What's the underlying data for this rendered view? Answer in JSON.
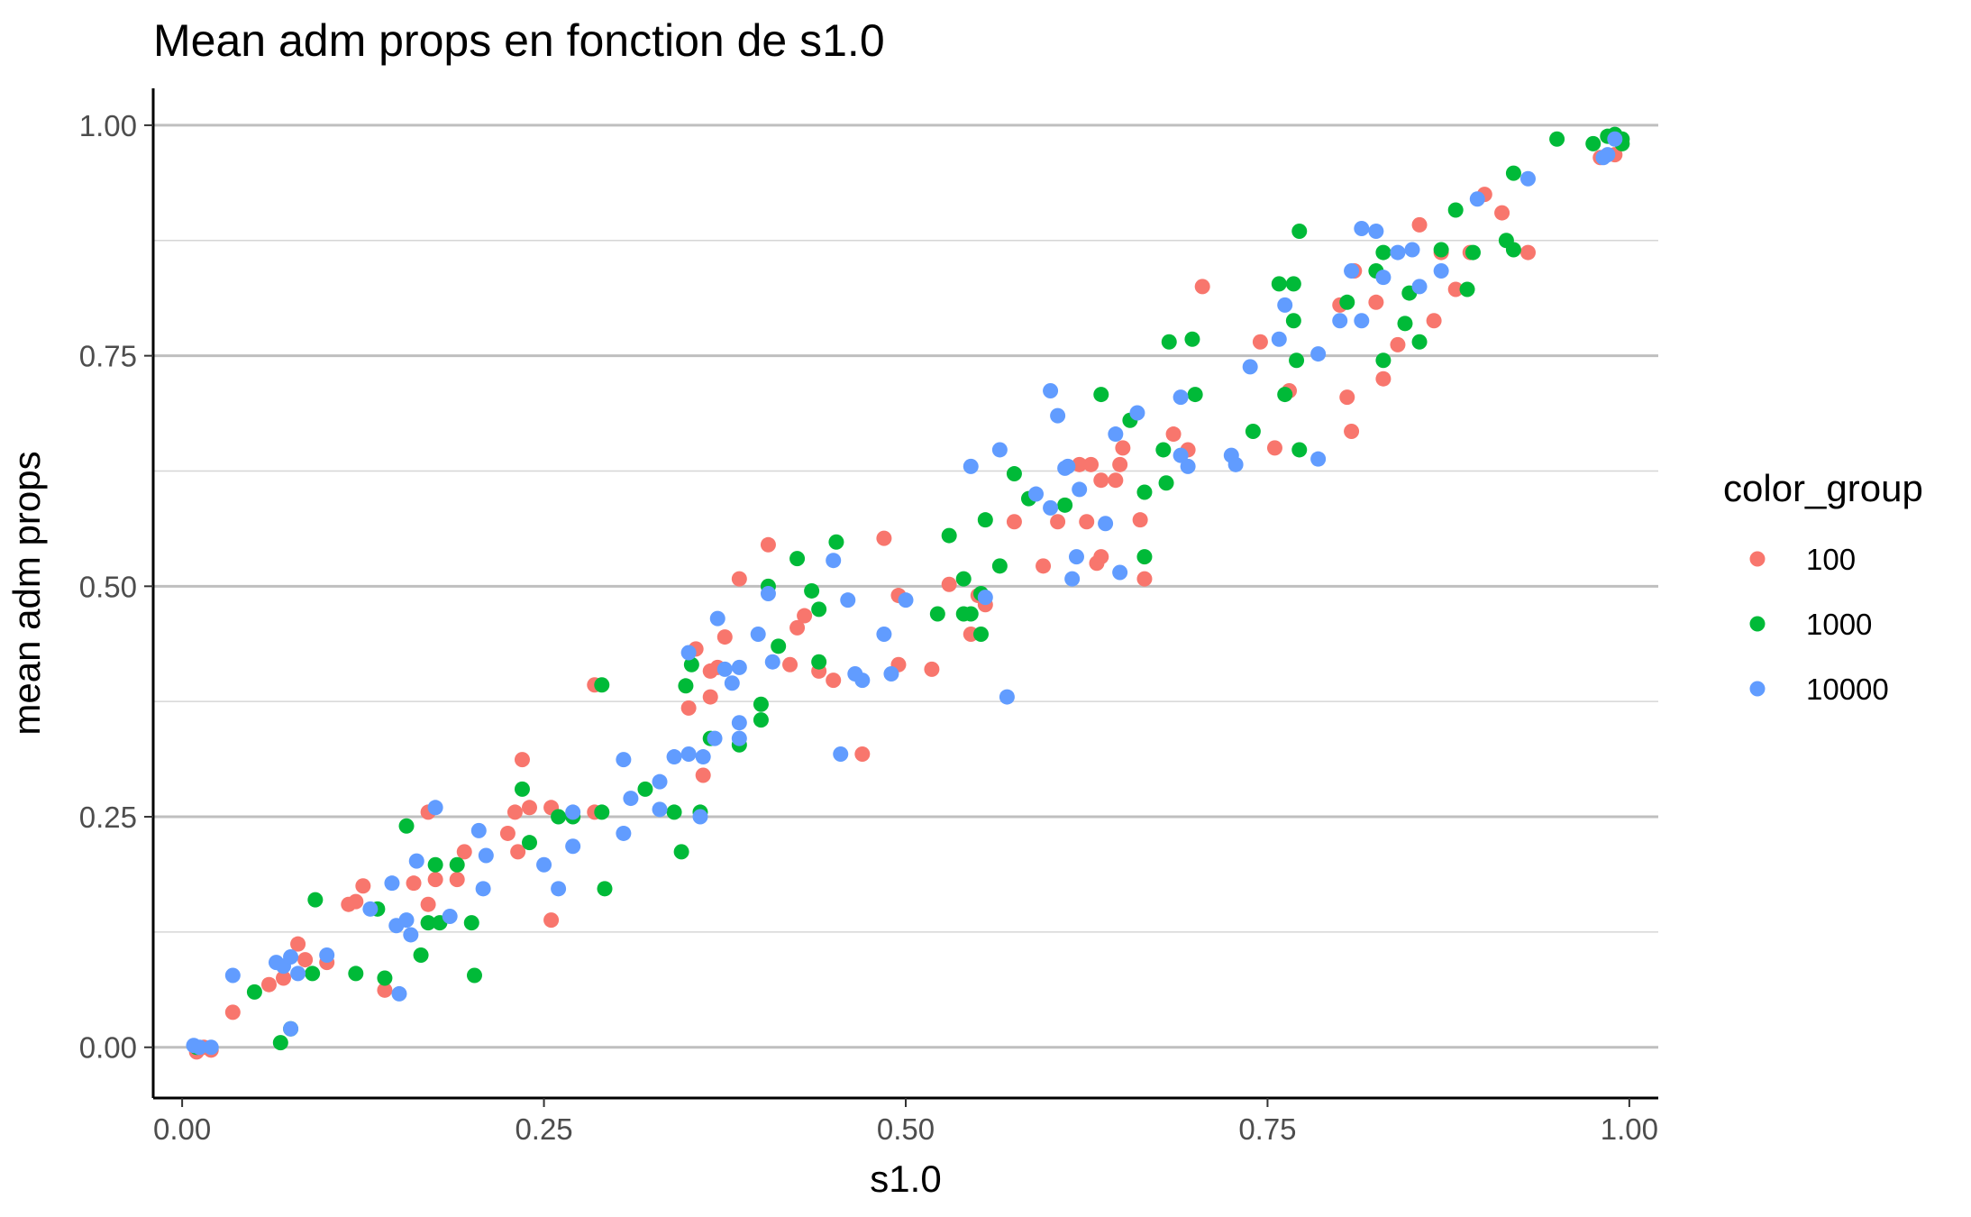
{
  "chart_data": {
    "type": "scatter",
    "title": "Mean adm props en fonction de s1.0",
    "xlabel": "s1.0",
    "ylabel": "mean adm props",
    "xlim": [
      -0.02,
      1.02
    ],
    "ylim": [
      -0.055,
      1.04
    ],
    "x_ticks": [
      0,
      0.25,
      0.5,
      0.75,
      1
    ],
    "x_tick_labels": [
      "0.00",
      "0.25",
      "0.50",
      "0.75",
      "1.00"
    ],
    "y_ticks": [
      0,
      0.25,
      0.5,
      0.75,
      1
    ],
    "y_tick_labels": [
      "0.00",
      "0.25",
      "0.50",
      "0.75",
      "1.00"
    ],
    "y_minor_ticks": [
      0.125,
      0.375,
      0.625,
      0.875
    ],
    "grid": "horizontal",
    "legend": {
      "title": "color_group",
      "placement": "right",
      "entries": [
        "100",
        "1000",
        "10000"
      ]
    },
    "series": [
      {
        "name": "100",
        "color": "#F8766D",
        "points": [
          [
            0.01,
            -0.005
          ],
          [
            0.015,
            0.0
          ],
          [
            0.02,
            -0.003
          ],
          [
            0.035,
            0.038
          ],
          [
            0.06,
            0.068
          ],
          [
            0.07,
            0.075
          ],
          [
            0.08,
            0.112
          ],
          [
            0.085,
            0.095
          ],
          [
            0.1,
            0.092
          ],
          [
            0.115,
            0.155
          ],
          [
            0.12,
            0.158
          ],
          [
            0.125,
            0.175
          ],
          [
            0.14,
            0.062
          ],
          [
            0.16,
            0.178
          ],
          [
            0.17,
            0.255
          ],
          [
            0.17,
            0.155
          ],
          [
            0.175,
            0.182
          ],
          [
            0.19,
            0.182
          ],
          [
            0.195,
            0.212
          ],
          [
            0.225,
            0.232
          ],
          [
            0.23,
            0.255
          ],
          [
            0.232,
            0.212
          ],
          [
            0.235,
            0.312
          ],
          [
            0.24,
            0.26
          ],
          [
            0.255,
            0.26
          ],
          [
            0.255,
            0.138
          ],
          [
            0.285,
            0.255
          ],
          [
            0.285,
            0.393
          ],
          [
            0.35,
            0.368
          ],
          [
            0.355,
            0.432
          ],
          [
            0.36,
            0.295
          ],
          [
            0.365,
            0.38
          ],
          [
            0.365,
            0.408
          ],
          [
            0.37,
            0.412
          ],
          [
            0.375,
            0.445
          ],
          [
            0.385,
            0.508
          ],
          [
            0.405,
            0.545
          ],
          [
            0.42,
            0.415
          ],
          [
            0.425,
            0.455
          ],
          [
            0.43,
            0.468
          ],
          [
            0.44,
            0.408
          ],
          [
            0.45,
            0.398
          ],
          [
            0.47,
            0.318
          ],
          [
            0.485,
            0.552
          ],
          [
            0.495,
            0.415
          ],
          [
            0.495,
            0.49
          ],
          [
            0.518,
            0.41
          ],
          [
            0.53,
            0.502
          ],
          [
            0.545,
            0.448
          ],
          [
            0.55,
            0.49
          ],
          [
            0.555,
            0.48
          ],
          [
            0.575,
            0.57
          ],
          [
            0.595,
            0.522
          ],
          [
            0.605,
            0.57
          ],
          [
            0.62,
            0.632
          ],
          [
            0.625,
            0.57
          ],
          [
            0.628,
            0.632
          ],
          [
            0.632,
            0.525
          ],
          [
            0.635,
            0.532
          ],
          [
            0.635,
            0.615
          ],
          [
            0.645,
            0.615
          ],
          [
            0.648,
            0.632
          ],
          [
            0.65,
            0.65
          ],
          [
            0.662,
            0.572
          ],
          [
            0.665,
            0.508
          ],
          [
            0.685,
            0.665
          ],
          [
            0.695,
            0.648
          ],
          [
            0.705,
            0.825
          ],
          [
            0.745,
            0.765
          ],
          [
            0.755,
            0.65
          ],
          [
            0.765,
            0.712
          ],
          [
            0.8,
            0.805
          ],
          [
            0.805,
            0.705
          ],
          [
            0.808,
            0.668
          ],
          [
            0.81,
            0.842
          ],
          [
            0.825,
            0.808
          ],
          [
            0.83,
            0.725
          ],
          [
            0.84,
            0.762
          ],
          [
            0.855,
            0.892
          ],
          [
            0.865,
            0.788
          ],
          [
            0.87,
            0.862
          ],
          [
            0.88,
            0.822
          ],
          [
            0.89,
            0.862
          ],
          [
            0.9,
            0.925
          ],
          [
            0.912,
            0.905
          ],
          [
            0.93,
            0.862
          ],
          [
            0.98,
            0.965
          ],
          [
            0.99,
            0.968
          ]
        ]
      },
      {
        "name": "1000",
        "color": "#00BA38",
        "points": [
          [
            0.01,
            0.0
          ],
          [
            0.05,
            0.06
          ],
          [
            0.068,
            0.005
          ],
          [
            0.075,
            0.02
          ],
          [
            0.09,
            0.08
          ],
          [
            0.092,
            0.16
          ],
          [
            0.12,
            0.08
          ],
          [
            0.135,
            0.15
          ],
          [
            0.14,
            0.075
          ],
          [
            0.155,
            0.24
          ],
          [
            0.165,
            0.1
          ],
          [
            0.17,
            0.135
          ],
          [
            0.175,
            0.198
          ],
          [
            0.178,
            0.135
          ],
          [
            0.19,
            0.198
          ],
          [
            0.2,
            0.135
          ],
          [
            0.202,
            0.078
          ],
          [
            0.235,
            0.28
          ],
          [
            0.24,
            0.222
          ],
          [
            0.26,
            0.25
          ],
          [
            0.27,
            0.25
          ],
          [
            0.29,
            0.255
          ],
          [
            0.29,
            0.393
          ],
          [
            0.292,
            0.172
          ],
          [
            0.32,
            0.28
          ],
          [
            0.34,
            0.255
          ],
          [
            0.345,
            0.212
          ],
          [
            0.348,
            0.392
          ],
          [
            0.352,
            0.415
          ],
          [
            0.358,
            0.255
          ],
          [
            0.365,
            0.335
          ],
          [
            0.385,
            0.328
          ],
          [
            0.4,
            0.355
          ],
          [
            0.4,
            0.372
          ],
          [
            0.405,
            0.5
          ],
          [
            0.412,
            0.435
          ],
          [
            0.425,
            0.53
          ],
          [
            0.435,
            0.495
          ],
          [
            0.44,
            0.475
          ],
          [
            0.44,
            0.418
          ],
          [
            0.452,
            0.548
          ],
          [
            0.522,
            0.47
          ],
          [
            0.53,
            0.555
          ],
          [
            0.54,
            0.508
          ],
          [
            0.54,
            0.47
          ],
          [
            0.545,
            0.47
          ],
          [
            0.552,
            0.448
          ],
          [
            0.552,
            0.492
          ],
          [
            0.555,
            0.572
          ],
          [
            0.565,
            0.522
          ],
          [
            0.575,
            0.622
          ],
          [
            0.585,
            0.595
          ],
          [
            0.61,
            0.588
          ],
          [
            0.635,
            0.708
          ],
          [
            0.655,
            0.68
          ],
          [
            0.665,
            0.532
          ],
          [
            0.665,
            0.602
          ],
          [
            0.678,
            0.648
          ],
          [
            0.68,
            0.612
          ],
          [
            0.682,
            0.765
          ],
          [
            0.698,
            0.768
          ],
          [
            0.7,
            0.708
          ],
          [
            0.74,
            0.668
          ],
          [
            0.758,
            0.828
          ],
          [
            0.762,
            0.708
          ],
          [
            0.768,
            0.828
          ],
          [
            0.768,
            0.788
          ],
          [
            0.77,
            0.745
          ],
          [
            0.772,
            0.648
          ],
          [
            0.772,
            0.885
          ],
          [
            0.805,
            0.808
          ],
          [
            0.825,
            0.842
          ],
          [
            0.83,
            0.745
          ],
          [
            0.83,
            0.862
          ],
          [
            0.845,
            0.785
          ],
          [
            0.848,
            0.818
          ],
          [
            0.855,
            0.765
          ],
          [
            0.87,
            0.865
          ],
          [
            0.88,
            0.908
          ],
          [
            0.888,
            0.822
          ],
          [
            0.892,
            0.862
          ],
          [
            0.915,
            0.875
          ],
          [
            0.92,
            0.948
          ],
          [
            0.92,
            0.865
          ],
          [
            0.95,
            0.985
          ],
          [
            0.975,
            0.98
          ],
          [
            0.985,
            0.988
          ],
          [
            0.99,
            0.99
          ],
          [
            0.995,
            0.985
          ],
          [
            0.995,
            0.98
          ]
        ]
      },
      {
        "name": "10000",
        "color": "#619CFF",
        "points": [
          [
            0.008,
            0.002
          ],
          [
            0.012,
            0.0
          ],
          [
            0.02,
            0.0
          ],
          [
            0.035,
            0.078
          ],
          [
            0.065,
            0.092
          ],
          [
            0.07,
            0.088
          ],
          [
            0.075,
            0.098
          ],
          [
            0.075,
            0.02
          ],
          [
            0.08,
            0.08
          ],
          [
            0.1,
            0.1
          ],
          [
            0.13,
            0.15
          ],
          [
            0.145,
            0.178
          ],
          [
            0.148,
            0.132
          ],
          [
            0.15,
            0.058
          ],
          [
            0.155,
            0.138
          ],
          [
            0.158,
            0.122
          ],
          [
            0.162,
            0.202
          ],
          [
            0.175,
            0.26
          ],
          [
            0.185,
            0.142
          ],
          [
            0.205,
            0.235
          ],
          [
            0.208,
            0.172
          ],
          [
            0.21,
            0.208
          ],
          [
            0.25,
            0.198
          ],
          [
            0.26,
            0.172
          ],
          [
            0.27,
            0.255
          ],
          [
            0.27,
            0.218
          ],
          [
            0.305,
            0.312
          ],
          [
            0.305,
            0.232
          ],
          [
            0.31,
            0.27
          ],
          [
            0.33,
            0.258
          ],
          [
            0.33,
            0.288
          ],
          [
            0.34,
            0.315
          ],
          [
            0.35,
            0.318
          ],
          [
            0.35,
            0.428
          ],
          [
            0.358,
            0.25
          ],
          [
            0.36,
            0.315
          ],
          [
            0.368,
            0.335
          ],
          [
            0.37,
            0.465
          ],
          [
            0.375,
            0.41
          ],
          [
            0.38,
            0.395
          ],
          [
            0.385,
            0.412
          ],
          [
            0.385,
            0.335
          ],
          [
            0.385,
            0.352
          ],
          [
            0.398,
            0.448
          ],
          [
            0.405,
            0.492
          ],
          [
            0.408,
            0.418
          ],
          [
            0.45,
            0.528
          ],
          [
            0.455,
            0.318
          ],
          [
            0.46,
            0.485
          ],
          [
            0.465,
            0.405
          ],
          [
            0.47,
            0.398
          ],
          [
            0.485,
            0.448
          ],
          [
            0.49,
            0.405
          ],
          [
            0.5,
            0.485
          ],
          [
            0.545,
            0.63
          ],
          [
            0.555,
            0.488
          ],
          [
            0.565,
            0.648
          ],
          [
            0.57,
            0.38
          ],
          [
            0.59,
            0.6
          ],
          [
            0.6,
            0.585
          ],
          [
            0.6,
            0.712
          ],
          [
            0.605,
            0.685
          ],
          [
            0.61,
            0.628
          ],
          [
            0.612,
            0.63
          ],
          [
            0.615,
            0.508
          ],
          [
            0.618,
            0.532
          ],
          [
            0.62,
            0.605
          ],
          [
            0.638,
            0.568
          ],
          [
            0.645,
            0.665
          ],
          [
            0.648,
            0.515
          ],
          [
            0.66,
            0.688
          ],
          [
            0.69,
            0.705
          ],
          [
            0.69,
            0.642
          ],
          [
            0.695,
            0.63
          ],
          [
            0.725,
            0.642
          ],
          [
            0.728,
            0.632
          ],
          [
            0.738,
            0.738
          ],
          [
            0.758,
            0.768
          ],
          [
            0.762,
            0.805
          ],
          [
            0.785,
            0.752
          ],
          [
            0.785,
            0.638
          ],
          [
            0.8,
            0.788
          ],
          [
            0.808,
            0.842
          ],
          [
            0.815,
            0.788
          ],
          [
            0.815,
            0.888
          ],
          [
            0.825,
            0.885
          ],
          [
            0.83,
            0.835
          ],
          [
            0.84,
            0.862
          ],
          [
            0.85,
            0.865
          ],
          [
            0.855,
            0.825
          ],
          [
            0.87,
            0.842
          ],
          [
            0.895,
            0.92
          ],
          [
            0.93,
            0.942
          ],
          [
            0.982,
            0.965
          ],
          [
            0.985,
            0.968
          ],
          [
            0.99,
            0.985
          ]
        ]
      }
    ]
  }
}
